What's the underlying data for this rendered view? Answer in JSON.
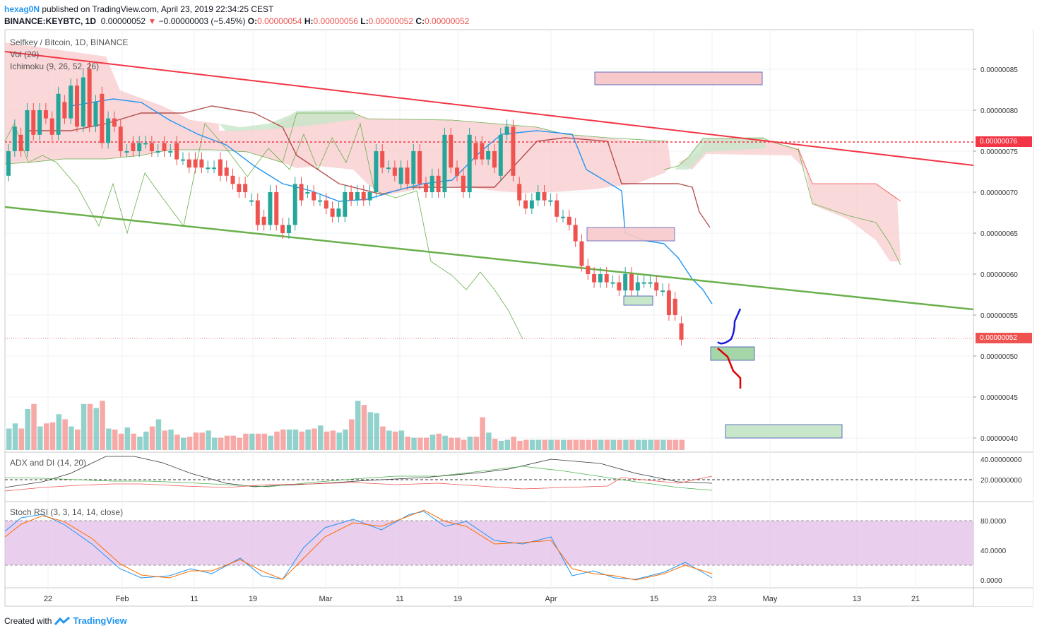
{
  "header": {
    "user": "hexag0N",
    "published": "published on TradingView.com, April 23, 2019 22:34:25 CEST",
    "symbol_line": "BINANCE:KEYBTC, 1D",
    "last": "0.00000052",
    "change": "−0.00000003 (−5.45%)",
    "o_label": "O:",
    "o": "0.00000054",
    "h_label": "H:",
    "h": "0.00000056",
    "l_label": "L:",
    "l": "0.00000052",
    "c_label": "C:",
    "c": "0.00000052"
  },
  "legends": {
    "main_title": "Selfkey / Bitcoin, 1D, BINANCE",
    "vol": "Vol (20)",
    "ichimoku": "Ichimoku (9, 26, 52, 26)",
    "adx": "ADX and DI (14, 20)",
    "stoch": "Stoch RSI (3, 3, 14, 14, close)"
  },
  "price_tags": {
    "resistance": "0.00000076",
    "current": "0.00000052"
  },
  "footer": {
    "created_with": "Created with",
    "brand": "TradingView"
  },
  "colors": {
    "up": "#26a69a",
    "down": "#ef5350",
    "cloud_red": "#f8c9cb",
    "cloud_green": "#c8e6c9",
    "tenkan": "#2196f3",
    "kijun": "#a52a2a",
    "trend_red": "#f23645",
    "trend_green": "#6ab04c",
    "stoch_bg": "#e1bee7"
  },
  "chart_data": [
    {
      "type": "candlestick",
      "title": "Selfkey / Bitcoin, 1D, BINANCE",
      "x_ticks": [
        "22",
        "Feb",
        "11",
        "19",
        "Mar",
        "11",
        "19",
        "Apr",
        "15",
        "23",
        "May",
        "13",
        "21"
      ],
      "y_ticks": [
        "0.00000085",
        "0.00000080",
        "0.00000075",
        "0.00000070",
        "0.00000065",
        "0.00000060",
        "0.00000055",
        "0.00000050",
        "0.00000045",
        "0.00000040"
      ],
      "ylim": [
        3.9e-07,
        8.9e-07
      ],
      "resistance_level": 7.6e-07,
      "last_price": 5.2e-07,
      "candles": [
        {
          "o": 0.72,
          "c": 0.75
        },
        {
          "o": 0.75,
          "c": 0.78
        },
        {
          "o": 0.77,
          "c": 0.75
        },
        {
          "o": 0.75,
          "c": 0.8
        },
        {
          "o": 0.8,
          "c": 0.77
        },
        {
          "o": 0.77,
          "c": 0.8
        },
        {
          "o": 0.8,
          "c": 0.79
        },
        {
          "o": 0.79,
          "c": 0.77
        },
        {
          "o": 0.77,
          "c": 0.82
        },
        {
          "o": 0.81,
          "c": 0.79
        },
        {
          "o": 0.79,
          "c": 0.83
        },
        {
          "o": 0.83,
          "c": 0.78
        },
        {
          "o": 0.78,
          "c": 0.84
        },
        {
          "o": 0.85,
          "c": 0.78
        },
        {
          "o": 0.78,
          "c": 0.81
        },
        {
          "o": 0.82,
          "c": 0.76
        },
        {
          "o": 0.76,
          "c": 0.79
        },
        {
          "o": 0.79,
          "c": 0.78
        },
        {
          "o": 0.78,
          "c": 0.75
        },
        {
          "o": 0.75,
          "c": 0.75
        },
        {
          "o": 0.76,
          "c": 0.75
        },
        {
          "o": 0.75,
          "c": 0.76
        },
        {
          "o": 0.76,
          "c": 0.76
        },
        {
          "o": 0.76,
          "c": 0.75
        },
        {
          "o": 0.75,
          "c": 0.75
        },
        {
          "o": 0.76,
          "c": 0.75
        },
        {
          "o": 0.75,
          "c": 0.75
        },
        {
          "o": 0.76,
          "c": 0.74
        },
        {
          "o": 0.74,
          "c": 0.74
        },
        {
          "o": 0.74,
          "c": 0.73
        },
        {
          "o": 0.74,
          "c": 0.73
        },
        {
          "o": 0.74,
          "c": 0.73
        },
        {
          "o": 0.73,
          "c": 0.73
        },
        {
          "o": 0.73,
          "c": 0.73
        },
        {
          "o": 0.74,
          "c": 0.72
        },
        {
          "o": 0.73,
          "c": 0.72
        },
        {
          "o": 0.72,
          "c": 0.71
        },
        {
          "o": 0.71,
          "c": 0.7
        },
        {
          "o": 0.71,
          "c": 0.7
        },
        {
          "o": 0.69,
          "c": 0.69
        },
        {
          "o": 0.69,
          "c": 0.66
        },
        {
          "o": 0.67,
          "c": 0.66
        },
        {
          "o": 0.66,
          "c": 0.7
        },
        {
          "o": 0.7,
          "c": 0.66
        },
        {
          "o": 0.66,
          "c": 0.65
        },
        {
          "o": 0.65,
          "c": 0.66
        },
        {
          "o": 0.66,
          "c": 0.71
        },
        {
          "o": 0.71,
          "c": 0.69
        },
        {
          "o": 0.7,
          "c": 0.7
        },
        {
          "o": 0.7,
          "c": 0.69
        },
        {
          "o": 0.69,
          "c": 0.69
        },
        {
          "o": 0.69,
          "c": 0.68
        },
        {
          "o": 0.68,
          "c": 0.67
        },
        {
          "o": 0.67,
          "c": 0.68
        },
        {
          "o": 0.67,
          "c": 0.7
        },
        {
          "o": 0.7,
          "c": 0.69
        },
        {
          "o": 0.69,
          "c": 0.7
        },
        {
          "o": 0.7,
          "c": 0.69
        },
        {
          "o": 0.69,
          "c": 0.7
        },
        {
          "o": 0.7,
          "c": 0.75
        },
        {
          "o": 0.75,
          "c": 0.73
        },
        {
          "o": 0.73,
          "c": 0.73
        },
        {
          "o": 0.73,
          "c": 0.72
        },
        {
          "o": 0.71,
          "c": 0.73
        },
        {
          "o": 0.73,
          "c": 0.71
        },
        {
          "o": 0.71,
          "c": 0.75
        },
        {
          "o": 0.75,
          "c": 0.71
        },
        {
          "o": 0.71,
          "c": 0.7
        },
        {
          "o": 0.7,
          "c": 0.72
        },
        {
          "o": 0.72,
          "c": 0.7
        },
        {
          "o": 0.7,
          "c": 0.77
        },
        {
          "o": 0.77,
          "c": 0.73
        },
        {
          "o": 0.73,
          "c": 0.72
        },
        {
          "o": 0.72,
          "c": 0.7
        },
        {
          "o": 0.7,
          "c": 0.77
        },
        {
          "o": 0.76,
          "c": 0.74
        },
        {
          "o": 0.76,
          "c": 0.74
        },
        {
          "o": 0.74,
          "c": 0.75
        },
        {
          "o": 0.75,
          "c": 0.73
        },
        {
          "o": 0.72,
          "c": 0.77
        },
        {
          "o": 0.77,
          "c": 0.78
        },
        {
          "o": 0.78,
          "c": 0.72
        },
        {
          "o": 0.71,
          "c": 0.69
        },
        {
          "o": 0.69,
          "c": 0.68
        },
        {
          "o": 0.68,
          "c": 0.69
        },
        {
          "o": 0.69,
          "c": 0.7
        },
        {
          "o": 0.7,
          "c": 0.69
        },
        {
          "o": 0.69,
          "c": 0.69
        },
        {
          "o": 0.69,
          "c": 0.67
        },
        {
          "o": 0.67,
          "c": 0.67
        },
        {
          "o": 0.67,
          "c": 0.66
        },
        {
          "o": 0.66,
          "c": 0.64
        },
        {
          "o": 0.64,
          "c": 0.61
        },
        {
          "o": 0.61,
          "c": 0.6
        },
        {
          "o": 0.6,
          "c": 0.59
        },
        {
          "o": 0.59,
          "c": 0.6
        },
        {
          "o": 0.6,
          "c": 0.59
        },
        {
          "o": 0.59,
          "c": 0.59
        },
        {
          "o": 0.59,
          "c": 0.58
        },
        {
          "o": 0.58,
          "c": 0.6
        },
        {
          "o": 0.6,
          "c": 0.58
        },
        {
          "o": 0.58,
          "c": 0.59
        },
        {
          "o": 0.59,
          "c": 0.59
        },
        {
          "o": 0.59,
          "c": 0.59
        },
        {
          "o": 0.59,
          "c": 0.58
        },
        {
          "o": 0.58,
          "c": 0.58
        },
        {
          "o": 0.58,
          "c": 0.55
        },
        {
          "o": 0.57,
          "c": 0.55
        },
        {
          "o": 0.54,
          "c": 0.52
        }
      ],
      "value_unit_scale": 1e-06,
      "volume_relative": [
        0.21,
        0.26,
        0.21,
        0.4,
        0.45,
        0.23,
        0.26,
        0.27,
        0.35,
        0.3,
        0.23,
        0.2,
        0.45,
        0.45,
        0.41,
        0.48,
        0.21,
        0.2,
        0.16,
        0.22,
        0.16,
        0.13,
        0.18,
        0.23,
        0.3,
        0.19,
        0.2,
        0.15,
        0.12,
        0.13,
        0.17,
        0.17,
        0.19,
        0.12,
        0.12,
        0.14,
        0.14,
        0.12,
        0.16,
        0.16,
        0.16,
        0.16,
        0.14,
        0.18,
        0.2,
        0.2,
        0.2,
        0.18,
        0.2,
        0.21,
        0.24,
        0.18,
        0.19,
        0.17,
        0.2,
        0.3,
        0.48,
        0.44,
        0.37,
        0.36,
        0.23,
        0.19,
        0.18,
        0.19,
        0.13,
        0.12,
        0.12,
        0.12,
        0.15,
        0.16,
        0.14,
        0.12,
        0.12,
        0.1,
        0.13,
        0.13,
        0.32,
        0.17,
        0.11,
        0.09,
        0.1,
        0.13,
        0.09,
        0.1,
        0.1,
        0.1,
        0.1,
        0.1,
        0.1,
        0.1,
        0.1,
        0.1,
        0.1,
        0.1,
        0.1,
        0.1,
        0.1,
        0.1,
        0.1,
        0.1,
        0.1,
        0.1,
        0.1,
        0.1,
        0.1,
        0.1,
        0.1,
        0.1,
        0.1,
        0.1,
        0.1
      ]
    },
    {
      "type": "line",
      "title": "ADX and DI (14, 20)",
      "y_ticks": [
        "40.00000000",
        "20.00000000"
      ],
      "ylim": [
        0,
        50
      ],
      "threshold": 20
    },
    {
      "type": "line",
      "title": "Stoch RSI (3, 3, 14, 14, close)",
      "y_ticks": [
        "80.0000",
        "40.0000",
        "0.0000"
      ],
      "ylim": [
        -10,
        95
      ],
      "band": [
        20,
        80
      ]
    }
  ]
}
